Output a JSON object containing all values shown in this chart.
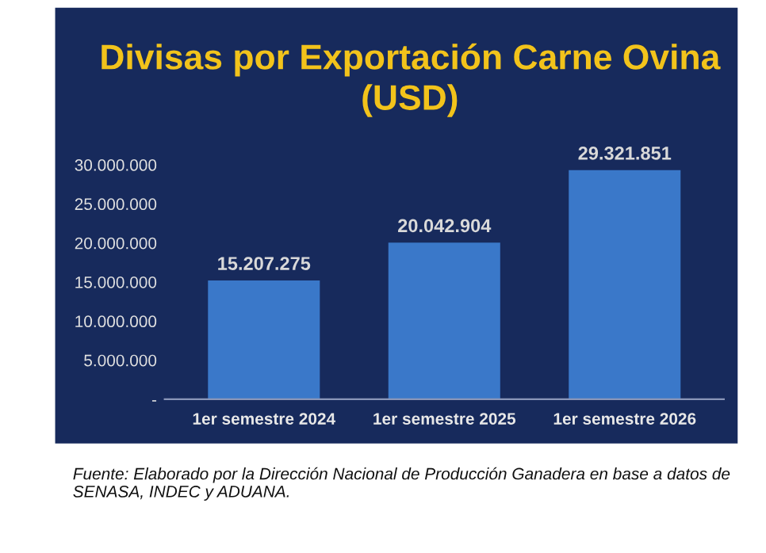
{
  "chart_data": {
    "type": "bar",
    "title": "Divisas por Exportación Carne Ovina (USD)",
    "categories": [
      "1er semestre 2024",
      "1er semestre 2025",
      "1er semestre 2026"
    ],
    "values": [
      15207275,
      20042904,
      29321851
    ],
    "value_labels": [
      "15.207.275",
      "20.042.904",
      "29.321.851"
    ],
    "color": "#3a78c9",
    "ylim": [
      0,
      30000000
    ],
    "yticks": [
      {
        "value": 0,
        "label": "-"
      },
      {
        "value": 5000000,
        "label": "5.000.000"
      },
      {
        "value": 10000000,
        "label": "10.000.000"
      },
      {
        "value": 15000000,
        "label": "15.000.000"
      },
      {
        "value": 20000000,
        "label": "20.000.000"
      },
      {
        "value": 25000000,
        "label": "25.000.000"
      },
      {
        "value": 30000000,
        "label": "30.000.000"
      }
    ],
    "grid": false,
    "legend": false,
    "annotations": [
      "Fuente: Elaborado por la Dirección Nacional de Producción Ganadera en base a datos de SENASA, INDEC y ADUANA."
    ]
  }
}
